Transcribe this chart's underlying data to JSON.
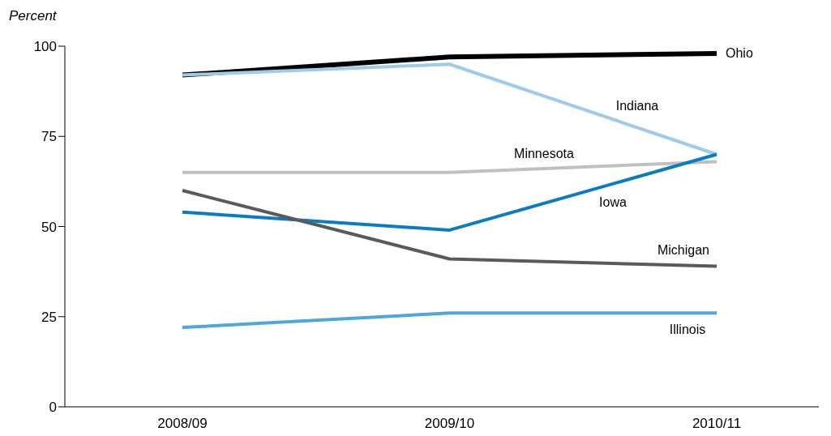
{
  "chart_data": {
    "type": "line",
    "ylabel": "Percent",
    "categories": [
      "2008/09",
      "2009/10",
      "2010/11"
    ],
    "ylim": [
      0,
      100
    ],
    "yticks": [
      0,
      25,
      50,
      75,
      100
    ],
    "grid": false,
    "legend": false,
    "marker": "none",
    "line_style": "solid",
    "series": [
      {
        "name": "Ohio",
        "color": "#000000",
        "values": [
          92,
          97,
          98
        ]
      },
      {
        "name": "Indiana",
        "color": "#9dcbea",
        "values": [
          92,
          95,
          70
        ]
      },
      {
        "name": "Minnesota",
        "color": "#c0c0c0",
        "values": [
          65,
          65,
          68
        ]
      },
      {
        "name": "Iowa",
        "color": "#0a7cc4",
        "values": [
          54,
          49,
          70
        ]
      },
      {
        "name": "Michigan",
        "color": "#5a5a5a",
        "values": [
          60,
          41,
          39
        ]
      },
      {
        "name": "Illinois",
        "color": "#4ea6dc",
        "values": [
          22,
          26,
          26
        ]
      }
    ]
  }
}
